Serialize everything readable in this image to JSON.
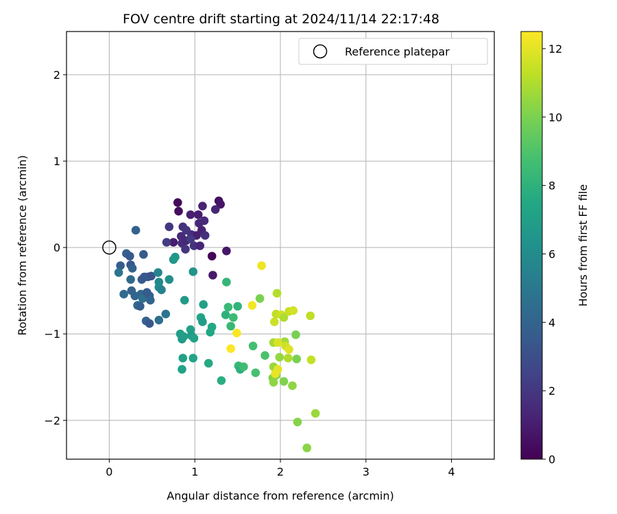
{
  "chart_data": {
    "type": "scatter",
    "title": "FOV centre drift starting at 2024/11/14 22:17:48",
    "xlabel": "Angular distance from reference (arcmin)",
    "ylabel": "Rotation from reference (arcmin)",
    "xlim": [
      -0.5,
      4.5
    ],
    "ylim": [
      -2.45,
      2.5
    ],
    "xticks": [
      0,
      1,
      2,
      3,
      4
    ],
    "yticks": [
      -2,
      -1,
      0,
      1,
      2
    ],
    "grid": true,
    "legend": {
      "placement": "top-right",
      "entries": [
        "Reference platepar"
      ]
    },
    "reference_point": {
      "x": 0,
      "y": 0,
      "label": "Reference platepar"
    },
    "colorbar": {
      "label": "Hours from first FF file",
      "colormap": "viridis",
      "range": [
        0,
        12.5
      ],
      "ticks": [
        0,
        2,
        4,
        6,
        8,
        10,
        12
      ]
    },
    "points": [
      {
        "x": 0.8,
        "y": 0.52,
        "t": 0.3
      },
      {
        "x": 1.28,
        "y": 0.54,
        "t": 0.5
      },
      {
        "x": 1.3,
        "y": 0.5,
        "t": 0.7
      },
      {
        "x": 0.81,
        "y": 0.42,
        "t": 0.4
      },
      {
        "x": 1.2,
        "y": -0.1,
        "t": 0.2
      },
      {
        "x": 1.37,
        "y": -0.04,
        "t": 0.8
      },
      {
        "x": 1.21,
        "y": -0.32,
        "t": 0.9
      },
      {
        "x": 0.95,
        "y": 0.38,
        "t": 1.1
      },
      {
        "x": 1.04,
        "y": 0.38,
        "t": 1.0
      },
      {
        "x": 1.09,
        "y": 0.48,
        "t": 1.2
      },
      {
        "x": 1.24,
        "y": 0.44,
        "t": 1.3
      },
      {
        "x": 1.05,
        "y": 0.28,
        "t": 1.4
      },
      {
        "x": 1.11,
        "y": 0.31,
        "t": 1.5
      },
      {
        "x": 0.96,
        "y": 0.15,
        "t": 1.6
      },
      {
        "x": 1.08,
        "y": 0.2,
        "t": 1.2
      },
      {
        "x": 1.12,
        "y": 0.14,
        "t": 1.7
      },
      {
        "x": 0.86,
        "y": 0.24,
        "t": 1.8
      },
      {
        "x": 0.9,
        "y": 0.2,
        "t": 1.9
      },
      {
        "x": 0.84,
        "y": 0.13,
        "t": 1.5
      },
      {
        "x": 0.85,
        "y": 0.05,
        "t": 1.6
      },
      {
        "x": 0.9,
        "y": 0.08,
        "t": 1.4
      },
      {
        "x": 0.99,
        "y": 0.02,
        "t": 1.8
      },
      {
        "x": 0.89,
        "y": -0.02,
        "t": 1.9
      },
      {
        "x": 1.06,
        "y": 0.02,
        "t": 1.3
      },
      {
        "x": 1.02,
        "y": 0.14,
        "t": 1.1
      },
      {
        "x": 0.75,
        "y": 0.06,
        "t": 1.0
      },
      {
        "x": 0.7,
        "y": 0.24,
        "t": 2.0
      },
      {
        "x": 0.67,
        "y": 0.06,
        "t": 2.2
      },
      {
        "x": 0.95,
        "y": 0.1,
        "t": 2.1
      },
      {
        "x": 0.31,
        "y": 0.2,
        "t": 3.9
      },
      {
        "x": 0.4,
        "y": -0.08,
        "t": 3.6
      },
      {
        "x": 0.2,
        "y": -0.07,
        "t": 3.8
      },
      {
        "x": 0.24,
        "y": -0.1,
        "t": 3.5
      },
      {
        "x": 0.13,
        "y": -0.21,
        "t": 3.7
      },
      {
        "x": 0.25,
        "y": -0.2,
        "t": 3.4
      },
      {
        "x": 0.27,
        "y": -0.24,
        "t": 3.9
      },
      {
        "x": 0.11,
        "y": -0.29,
        "t": 4.8
      },
      {
        "x": 0.25,
        "y": -0.37,
        "t": 4.2
      },
      {
        "x": 0.38,
        "y": -0.37,
        "t": 3.6
      },
      {
        "x": 0.41,
        "y": -0.34,
        "t": 3.3
      },
      {
        "x": 0.45,
        "y": -0.34,
        "t": 3.5
      },
      {
        "x": 0.49,
        "y": -0.33,
        "t": 3.2
      },
      {
        "x": 0.26,
        "y": -0.5,
        "t": 3.9
      },
      {
        "x": 0.3,
        "y": -0.56,
        "t": 4.0
      },
      {
        "x": 0.17,
        "y": -0.54,
        "t": 4.3
      },
      {
        "x": 0.37,
        "y": -0.54,
        "t": 4.1
      },
      {
        "x": 0.39,
        "y": -0.59,
        "t": 4.6
      },
      {
        "x": 0.47,
        "y": -0.56,
        "t": 3.8
      },
      {
        "x": 0.48,
        "y": -0.61,
        "t": 4.0
      },
      {
        "x": 0.33,
        "y": -0.67,
        "t": 4.4
      },
      {
        "x": 0.36,
        "y": -0.68,
        "t": 3.7
      },
      {
        "x": 0.44,
        "y": -0.52,
        "t": 3.6
      },
      {
        "x": 0.43,
        "y": -0.85,
        "t": 3.9
      },
      {
        "x": 0.47,
        "y": -0.88,
        "t": 3.4
      },
      {
        "x": 0.58,
        "y": -0.84,
        "t": 4.5
      },
      {
        "x": 0.66,
        "y": -0.77,
        "t": 4.8
      },
      {
        "x": 0.57,
        "y": -0.29,
        "t": 5.6
      },
      {
        "x": 0.58,
        "y": -0.4,
        "t": 5.8
      },
      {
        "x": 0.58,
        "y": -0.46,
        "t": 6.0
      },
      {
        "x": 0.61,
        "y": -0.49,
        "t": 5.5
      },
      {
        "x": 0.7,
        "y": -0.37,
        "t": 6.2
      },
      {
        "x": 0.77,
        "y": -0.11,
        "t": 6.5
      },
      {
        "x": 0.75,
        "y": -0.14,
        "t": 6.6
      },
      {
        "x": 0.98,
        "y": -0.28,
        "t": 6.4
      },
      {
        "x": 0.88,
        "y": -0.61,
        "t": 6.8
      },
      {
        "x": 0.83,
        "y": -1.0,
        "t": 7.0
      },
      {
        "x": 0.85,
        "y": -1.06,
        "t": 6.7
      },
      {
        "x": 0.87,
        "y": -1.03,
        "t": 6.9
      },
      {
        "x": 0.95,
        "y": -0.95,
        "t": 7.1
      },
      {
        "x": 0.96,
        "y": -1.02,
        "t": 6.8
      },
      {
        "x": 0.99,
        "y": -1.05,
        "t": 7.2
      },
      {
        "x": 1.07,
        "y": -0.81,
        "t": 7.3
      },
      {
        "x": 1.1,
        "y": -0.66,
        "t": 7.0
      },
      {
        "x": 1.09,
        "y": -0.86,
        "t": 6.9
      },
      {
        "x": 1.18,
        "y": -0.98,
        "t": 7.4
      },
      {
        "x": 1.2,
        "y": -0.92,
        "t": 7.5
      },
      {
        "x": 0.86,
        "y": -1.28,
        "t": 7.1
      },
      {
        "x": 0.98,
        "y": -1.28,
        "t": 7.3
      },
      {
        "x": 0.85,
        "y": -1.41,
        "t": 7.2
      },
      {
        "x": 1.16,
        "y": -1.34,
        "t": 7.6
      },
      {
        "x": 1.31,
        "y": -1.54,
        "t": 7.8
      },
      {
        "x": 1.37,
        "y": -0.4,
        "t": 8.2
      },
      {
        "x": 1.39,
        "y": -0.69,
        "t": 8.4
      },
      {
        "x": 1.36,
        "y": -0.78,
        "t": 8.0
      },
      {
        "x": 1.42,
        "y": -0.91,
        "t": 8.3
      },
      {
        "x": 1.45,
        "y": -0.81,
        "t": 8.5
      },
      {
        "x": 1.5,
        "y": -0.68,
        "t": 8.1
      },
      {
        "x": 1.51,
        "y": -1.37,
        "t": 8.3
      },
      {
        "x": 1.53,
        "y": -1.41,
        "t": 7.9
      },
      {
        "x": 1.57,
        "y": -1.38,
        "t": 8.6
      },
      {
        "x": 1.68,
        "y": -1.14,
        "t": 8.7
      },
      {
        "x": 1.71,
        "y": -1.45,
        "t": 8.8
      },
      {
        "x": 1.82,
        "y": -1.25,
        "t": 8.9
      },
      {
        "x": 1.76,
        "y": -0.59,
        "t": 10.0
      },
      {
        "x": 1.91,
        "y": -1.51,
        "t": 10.2
      },
      {
        "x": 1.92,
        "y": -1.56,
        "t": 10.4
      },
      {
        "x": 1.92,
        "y": -1.38,
        "t": 10.6
      },
      {
        "x": 1.95,
        "y": -1.48,
        "t": 10.3
      },
      {
        "x": 1.99,
        "y": -1.27,
        "t": 10.5
      },
      {
        "x": 1.92,
        "y": -1.1,
        "t": 10.8
      },
      {
        "x": 2.04,
        "y": -1.55,
        "t": 10.1
      },
      {
        "x": 2.14,
        "y": -1.6,
        "t": 10.4
      },
      {
        "x": 2.19,
        "y": -1.29,
        "t": 10.0
      },
      {
        "x": 2.18,
        "y": -1.01,
        "t": 9.9
      },
      {
        "x": 2.2,
        "y": -2.02,
        "t": 10.2
      },
      {
        "x": 2.31,
        "y": -2.32,
        "t": 10.3
      },
      {
        "x": 2.41,
        "y": -1.92,
        "t": 10.6
      },
      {
        "x": 2.36,
        "y": -1.3,
        "t": 11.4
      },
      {
        "x": 2.35,
        "y": -0.79,
        "t": 11.3
      },
      {
        "x": 2.05,
        "y": -1.09,
        "t": 10.7
      },
      {
        "x": 2.09,
        "y": -1.28,
        "t": 11.0
      },
      {
        "x": 1.96,
        "y": -0.53,
        "t": 11.1
      },
      {
        "x": 1.93,
        "y": -0.86,
        "t": 11.5
      },
      {
        "x": 1.95,
        "y": -0.77,
        "t": 11.3
      },
      {
        "x": 2.01,
        "y": -0.78,
        "t": 11.6
      },
      {
        "x": 2.04,
        "y": -0.81,
        "t": 11.0
      },
      {
        "x": 2.1,
        "y": -0.74,
        "t": 11.4
      },
      {
        "x": 2.15,
        "y": -0.73,
        "t": 11.7
      },
      {
        "x": 1.97,
        "y": -1.1,
        "t": 11.8
      },
      {
        "x": 2.06,
        "y": -1.14,
        "t": 11.6
      },
      {
        "x": 2.1,
        "y": -1.18,
        "t": 11.9
      },
      {
        "x": 1.97,
        "y": -1.41,
        "t": 12.0
      },
      {
        "x": 1.94,
        "y": -1.46,
        "t": 12.1
      },
      {
        "x": 1.78,
        "y": -0.21,
        "t": 12.2
      },
      {
        "x": 1.67,
        "y": -0.67,
        "t": 12.3
      },
      {
        "x": 1.49,
        "y": -0.99,
        "t": 12.4
      },
      {
        "x": 1.42,
        "y": -1.17,
        "t": 12.5
      }
    ]
  }
}
